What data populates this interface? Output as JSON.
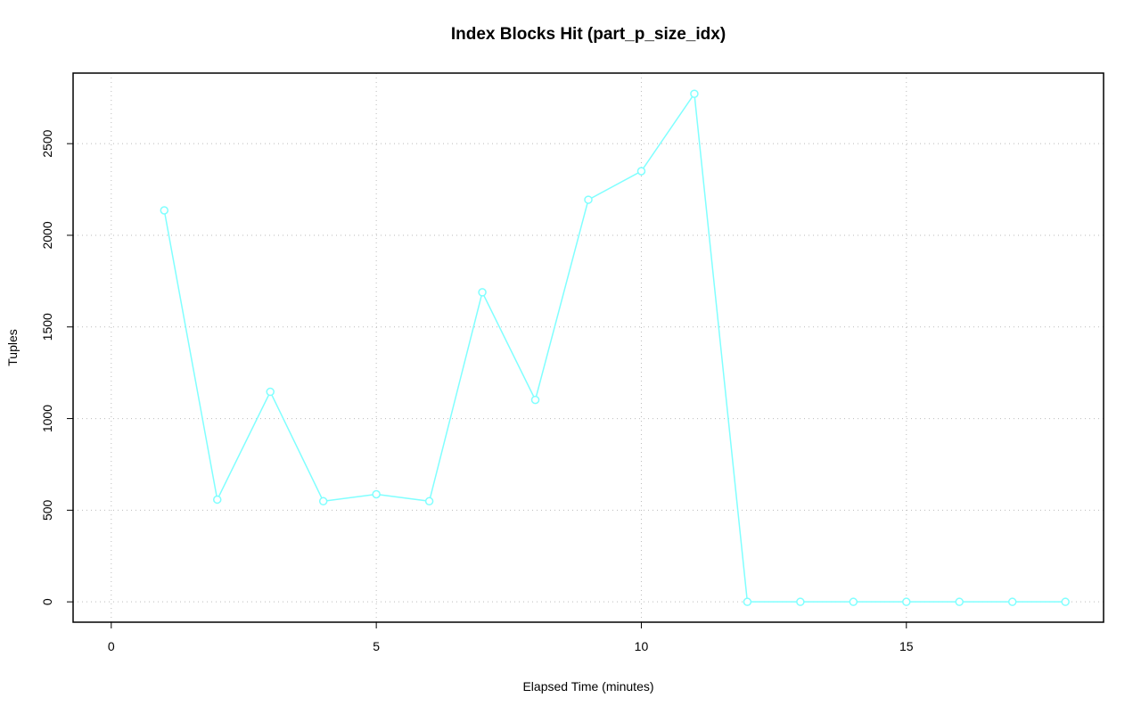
{
  "chart_data": {
    "type": "line",
    "title": "Index Blocks Hit (part_p_size_idx)",
    "x_label": "Elapsed Time (minutes)",
    "y_label": "Tuples",
    "x": [
      1,
      2,
      3,
      4,
      5,
      6,
      7,
      8,
      9,
      10,
      11,
      12,
      13,
      14,
      15,
      16,
      17,
      18
    ],
    "series": [
      {
        "name": "part_p_size_idx",
        "color": "#80ffff",
        "values": [
          2136,
          558,
          1146,
          549,
          587,
          549,
          1689,
          1102,
          2194,
          2350,
          2772,
          0,
          0,
          0,
          0,
          0,
          0,
          0
        ]
      }
    ],
    "xlim": [
      -0.72,
      18.72
    ],
    "ylim": [
      -111,
      2885
    ],
    "xticks": [
      0,
      5,
      10,
      15
    ],
    "yticks": [
      0,
      500,
      1000,
      1500,
      2000,
      2500
    ],
    "grid": true
  }
}
